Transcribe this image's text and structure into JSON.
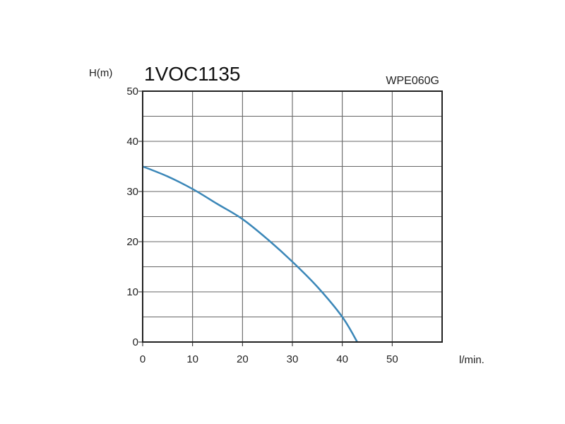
{
  "chart_data": {
    "type": "line",
    "title": "1VOC1135",
    "subtitle": "WPE060G",
    "xlabel": "l/min.",
    "ylabel": "H(m)",
    "xlim": [
      0,
      60
    ],
    "ylim": [
      0,
      50
    ],
    "x_ticks": [
      0,
      10,
      20,
      30,
      40,
      50
    ],
    "y_ticks": [
      0,
      10,
      20,
      30,
      40,
      50
    ],
    "x_tick_labels": [
      "0",
      "10",
      "20",
      "30",
      "40",
      "50"
    ],
    "y_tick_labels": [
      "0",
      "10",
      "20",
      "30",
      "40",
      "50"
    ],
    "grid": true,
    "line_color": "#3b87b8",
    "series": [
      {
        "x": [
          0,
          5,
          10,
          15,
          20,
          25,
          30,
          35,
          40,
          43
        ],
        "y": [
          35,
          33,
          30.5,
          27.5,
          24.5,
          20.5,
          16,
          11,
          5,
          0
        ]
      }
    ]
  }
}
